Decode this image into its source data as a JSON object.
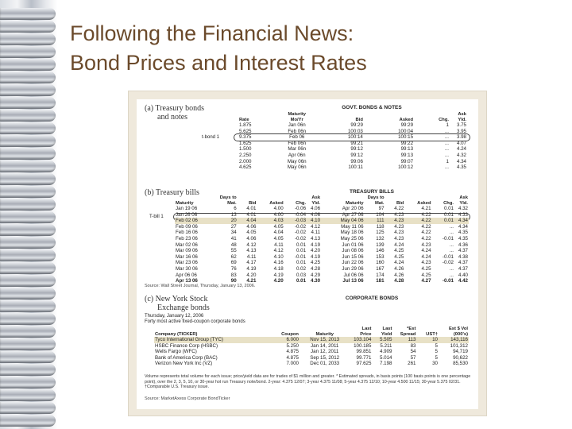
{
  "title": {
    "line1": "Following the Financial News:",
    "line2": "Bond Prices and Interest Rates"
  },
  "govt": {
    "label_a": "(a) Treasury bonds",
    "label_b": "and notes",
    "head": "GOVT. BONDS & NOTES",
    "callout": "t-bond 1",
    "cols": [
      "Rate",
      "Maturity Mo/Yr",
      "Bid",
      "Asked",
      "Chg.",
      "Ask Yld."
    ],
    "rows": [
      [
        "1.875",
        "Jan 06n",
        "99:29",
        "99:29",
        "1",
        "3.75"
      ],
      [
        "5.625",
        "Feb 06n",
        "100:03",
        "100:04",
        "...",
        "3.95"
      ],
      [
        "9.375",
        "Feb 06",
        "100:14",
        "100:15",
        "...",
        "3.98"
      ],
      [
        "1.625",
        "Feb 06n",
        "99:21",
        "99:22",
        "...",
        "4.07"
      ],
      [
        "1.500",
        "Mar 06n",
        "99:12",
        "99:13",
        "...",
        "4.24"
      ],
      [
        "2.250",
        "Apr 06n",
        "99:12",
        "99:13",
        "...",
        "4.32"
      ],
      [
        "2.000",
        "May 06n",
        "99:06",
        "99:07",
        "1",
        "4.34"
      ],
      [
        "4.625",
        "May 06n",
        "100:11",
        "100:12",
        "...",
        "4.35"
      ]
    ]
  },
  "bills": {
    "label": "(b) Treasury bills",
    "head": "TREASURY BILLS",
    "callout": "T-bill 1",
    "cols": [
      "Maturity",
      "Days to Mat.",
      "Bid",
      "Asked",
      "Chg.",
      "Ask Yld.",
      "Maturity",
      "Days to Mat.",
      "Bid",
      "Asked",
      "Chg.",
      "Ask Yld."
    ],
    "rows": [
      [
        "Jan 19 06",
        "6",
        "4.01",
        "4.00",
        "-0.06",
        "4.06",
        "Apr 20 06",
        "97",
        "4.22",
        "4.21",
        "0.01",
        "4.32"
      ],
      [
        "Jan 26 06",
        "13",
        "4.01",
        "4.00",
        "-0.04",
        "4.06",
        "Apr 27 06",
        "104",
        "4.23",
        "4.22",
        "0.01",
        "4.33"
      ],
      [
        "Feb 02 06",
        "20",
        "4.04",
        "4.03",
        "-0.03",
        "4.10",
        "May 04 06",
        "111",
        "4.23",
        "4.22",
        "0.01",
        "4.34"
      ],
      [
        "Feb 09 06",
        "27",
        "4.06",
        "4.05",
        "-0.02",
        "4.12",
        "May 11 06",
        "118",
        "4.23",
        "4.22",
        "...",
        "4.34"
      ],
      [
        "Feb 16 06",
        "34",
        "4.05",
        "4.04",
        "-0.02",
        "4.11",
        "May 18 06",
        "125",
        "4.23",
        "4.22",
        "...",
        "4.35"
      ],
      [
        "Feb 23 06",
        "41",
        "4.06",
        "4.05",
        "-0.02",
        "4.13",
        "May 25 06",
        "132",
        "4.23",
        "4.22",
        "-0.01",
        "4.35"
      ],
      [
        "Mar 02 06",
        "48",
        "4.12",
        "4.11",
        "0.01",
        "4.19",
        "Jun 01 06",
        "139",
        "4.24",
        "4.23",
        "...",
        "4.36"
      ],
      [
        "Mar 09 06",
        "55",
        "4.13",
        "4.12",
        "0.01",
        "4.20",
        "Jun 08 06",
        "146",
        "4.25",
        "4.24",
        "...",
        "4.37"
      ],
      [
        "Mar 16 06",
        "62",
        "4.11",
        "4.10",
        "-0.01",
        "4.19",
        "Jun 15 06",
        "153",
        "4.25",
        "4.24",
        "-0.01",
        "4.38"
      ],
      [
        "Mar 23 06",
        "69",
        "4.17",
        "4.16",
        "0.01",
        "4.25",
        "Jun 22 06",
        "160",
        "4.24",
        "4.23",
        "-0.02",
        "4.37"
      ],
      [
        "Mar 30 06",
        "76",
        "4.19",
        "4.18",
        "0.02",
        "4.28",
        "Jun 29 06",
        "167",
        "4.26",
        "4.25",
        "...",
        "4.37"
      ],
      [
        "Apr 06 06",
        "83",
        "4.20",
        "4.19",
        "0.03",
        "4.29",
        "Jul 06 06",
        "174",
        "4.26",
        "4.25",
        "...",
        "4.40"
      ],
      [
        "Apr 13 06",
        "90",
        "4.21",
        "4.20",
        "0.01",
        "4.30",
        "Jul 13 06",
        "181",
        "4.28",
        "4.27",
        "-0.01",
        "4.42"
      ]
    ],
    "source": "Source: Wall Street Journal, Thursday, January 13, 2006."
  },
  "corp": {
    "label_a": "(c) New York Stock",
    "label_b": "Exchange bonds",
    "head": "CORPORATE BONDS",
    "date_line": "Thursday, January 12, 2006",
    "sub": "Forty most active fixed-coupon corporate bonds",
    "cols": [
      "Company (TICKER)",
      "Coupon",
      "Maturity",
      "Last Price",
      "Last Yield",
      "*Est Spread",
      "UST†",
      "Est $ Vol (000's)"
    ],
    "rows": [
      [
        "Tyco International Group (TYC)",
        "6.000",
        "Nov 15, 2013",
        "103.104",
        "5.505",
        "113",
        "10",
        "143,116"
      ],
      [
        "HSBC Finance Corp (HSBC)",
        "5.250",
        "Jan 14, 2011",
        "100.185",
        "5.211",
        "83",
        "5",
        "101,312"
      ],
      [
        "Wells Fargo (WFC)",
        "4.875",
        "Jan 12, 2011",
        "99.851",
        "4.909",
        "54",
        "5",
        "94,719"
      ],
      [
        "Bank of America Corp (BAC)",
        "4.875",
        "Sep 15, 2012",
        "99.771",
        "5.014",
        "57",
        "5",
        "90,622"
      ],
      [
        "Verizon New York Inc (VZ)",
        "7.000",
        "Dec 01, 2033",
        "97.625",
        "7.198",
        "261",
        "30",
        "85,530"
      ]
    ],
    "note": "Volume represents total volume for each issue; price/yield data are for trades of $1 million and greater. * Estimated spreads, in basis points (100 basis points is one percentage point), over the 2, 3, 5, 10, or 30-year hot run Treasury note/bond. 2-year: 4.375 12/07; 3-year 4.375 11/08; 5-year 4.375 12/10; 10-year 4.500 11/15; 30-year 5.375 02/31. †Comparable U.S. Treasury issue.",
    "source": "Source: MarketAxess Corporate BondTicker"
  }
}
